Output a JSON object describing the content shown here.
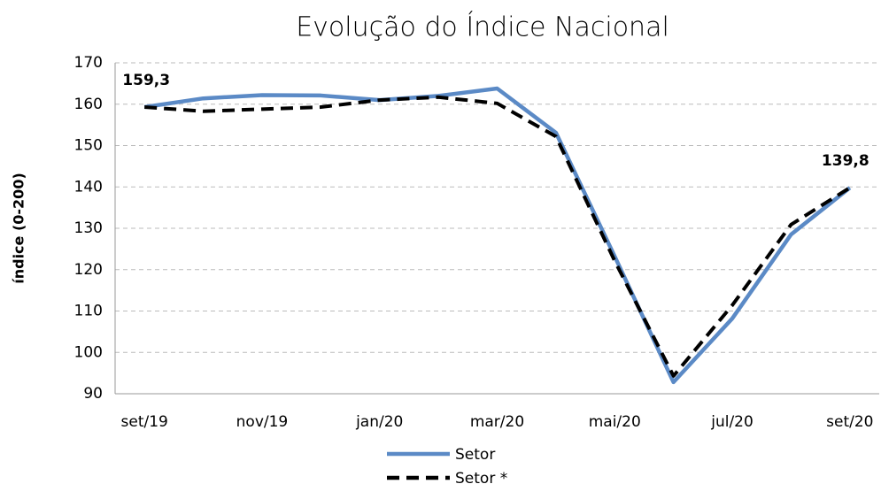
{
  "chart_data": {
    "type": "line",
    "title": "Evolução do Índice Nacional",
    "y_label": "índice (0-200)",
    "categories": [
      "set/19",
      null,
      "nov/19",
      null,
      "jan/20",
      null,
      "mar/20",
      null,
      "mai/20",
      null,
      "jul/20",
      null,
      "set/20"
    ],
    "series": [
      {
        "name": "Setor",
        "color": "#5b8ac6",
        "dash": false,
        "values": [
          159.3,
          161.4,
          162.2,
          162.1,
          161.0,
          162.0,
          163.8,
          153.1,
          123.2,
          92.8,
          108.2,
          128.5,
          139.8
        ],
        "value_labels": [
          "159,3",
          null,
          null,
          null,
          null,
          null,
          null,
          null,
          null,
          null,
          null,
          null,
          "139,8"
        ]
      },
      {
        "name": "Setor *",
        "color": "#000000",
        "dash": true,
        "values": [
          159.3,
          158.3,
          158.8,
          159.3,
          161.0,
          161.7,
          160.2,
          152.2,
          122.1,
          94.3,
          111.4,
          130.9,
          139.8
        ]
      }
    ],
    "ylim": [
      90,
      170
    ],
    "yticks": [
      90,
      100,
      110,
      120,
      130,
      140,
      150,
      160,
      170
    ],
    "grid": true,
    "legend": "bottom"
  }
}
